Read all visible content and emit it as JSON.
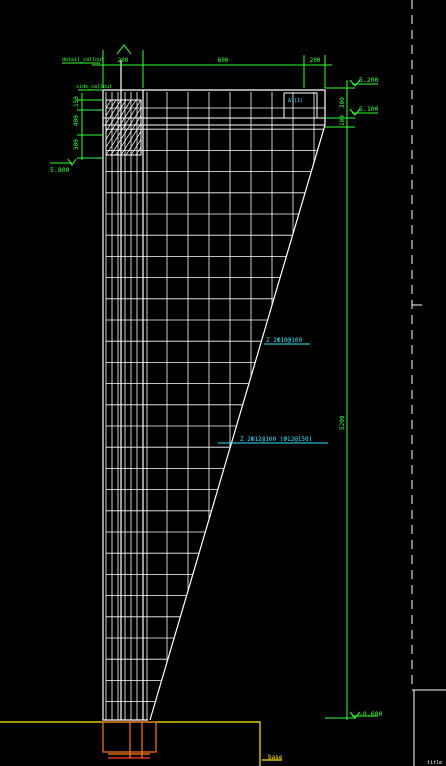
{
  "colors": {
    "background": "#000000",
    "outline": "#ffffff",
    "grid": "#ffffff",
    "dimension": "#33ff33",
    "annotation": "#33e6ff",
    "ground": "#ffee00",
    "footing": "#ff7a1a",
    "rebar": "#ff3333",
    "frame": "#ffffff"
  },
  "dimensions": {
    "top_left_width": "200",
    "top_mid_width": "600",
    "top_right_width": "200",
    "top_callout": "detail_callout",
    "left_side_callout": "side_callout",
    "left_seg_1": "150",
    "left_seg_2": "400",
    "left_seg_3": "300",
    "right_seg_1": "300",
    "right_seg_2": "100",
    "right_total": "5200"
  },
  "elevations": {
    "top": "5.200",
    "second": "5.100",
    "left": "5.800",
    "bottom": "-0.600"
  },
  "annotations": {
    "inset_tag": "A1(1)",
    "label_1": "Z 2Ф10@100",
    "label_2": "Z 2Ф12@100 (Ф12@150)",
    "bottom_mark": "base",
    "corner_tag": "title"
  }
}
